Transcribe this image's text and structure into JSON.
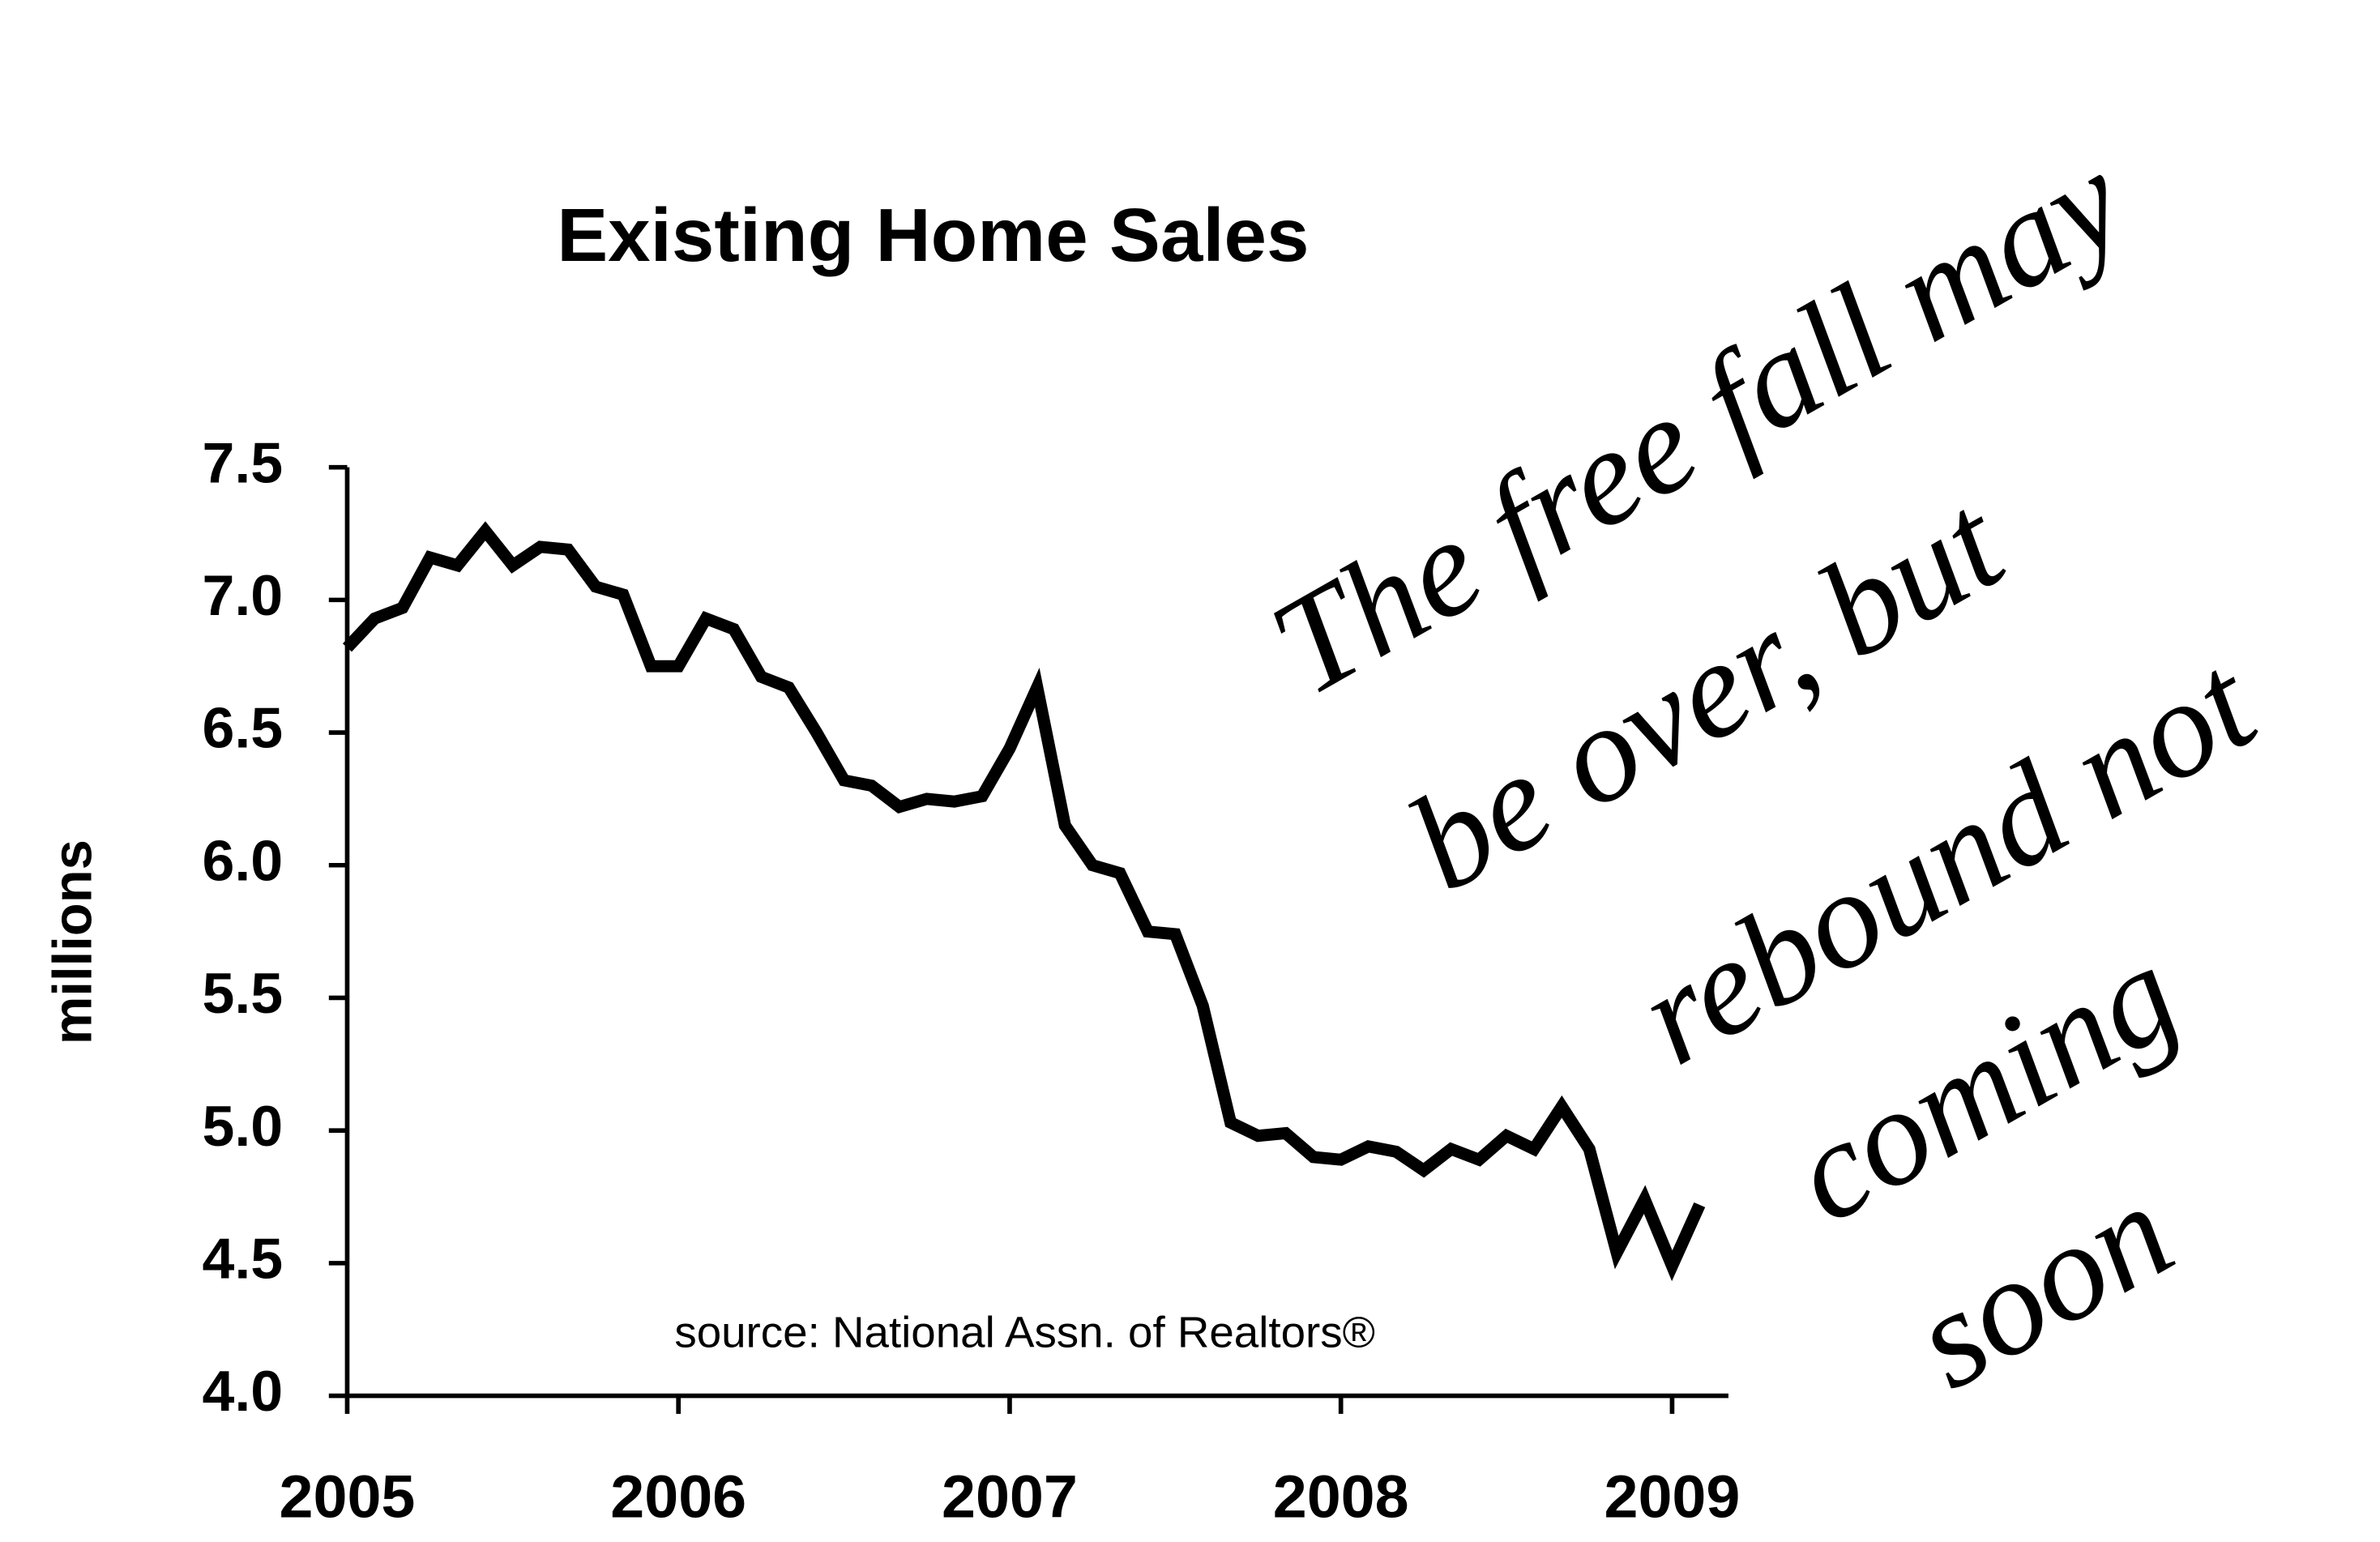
{
  "chart_data": {
    "type": "line",
    "title": "Existing Home Sales",
    "y_label": "millions",
    "annotations": [
      "source: National Assn. of Realtors®",
      "The free fall may",
      "be over, but",
      "rebound not",
      "coming",
      "soon"
    ],
    "x": [
      2005,
      2005.083,
      2005.167,
      2005.25,
      2005.333,
      2005.417,
      2005.5,
      2005.583,
      2005.667,
      2005.75,
      2005.833,
      2005.917,
      2006,
      2006.083,
      2006.167,
      2006.25,
      2006.333,
      2006.417,
      2006.5,
      2006.583,
      2006.667,
      2006.75,
      2006.833,
      2006.917,
      2007,
      2007.083,
      2007.167,
      2007.25,
      2007.333,
      2007.417,
      2007.5,
      2007.583,
      2007.667,
      2007.75,
      2007.833,
      2007.917,
      2008,
      2008.083,
      2008.167,
      2008.25,
      2008.333,
      2008.417,
      2008.5,
      2008.583,
      2008.667,
      2008.75,
      2008.833,
      2008.917,
      2009,
      2009.083
    ],
    "series": [
      {
        "name": "Existing Home Sales",
        "color": "#000000",
        "values": [
          6.82,
          6.93,
          6.97,
          7.16,
          7.13,
          7.26,
          7.13,
          7.2,
          7.19,
          7.05,
          7.02,
          6.75,
          6.75,
          6.93,
          6.89,
          6.71,
          6.67,
          6.5,
          6.32,
          6.3,
          6.22,
          6.25,
          6.24,
          6.26,
          6.44,
          6.67,
          6.15,
          6.0,
          5.97,
          5.75,
          5.74,
          5.47,
          5.03,
          4.98,
          4.99,
          4.9,
          4.89,
          4.94,
          4.92,
          4.85,
          4.93,
          4.89,
          4.98,
          4.93,
          5.09,
          4.93,
          4.54,
          4.74,
          4.49,
          4.72
        ]
      }
    ],
    "xlim": [
      2005,
      2009.17
    ],
    "xticks": [
      2005,
      2006,
      2007,
      2008,
      2009
    ],
    "ylim": [
      4,
      7.5
    ],
    "yticks": [
      {
        "value": 4,
        "label": "4.0"
      },
      4.5,
      {
        "value": 5,
        "label": "5.0"
      },
      5.5,
      {
        "value": 6,
        "label": "6.0"
      },
      6.5,
      {
        "value": 7,
        "label": "7.0"
      },
      7.5
    ],
    "grid": false
  }
}
